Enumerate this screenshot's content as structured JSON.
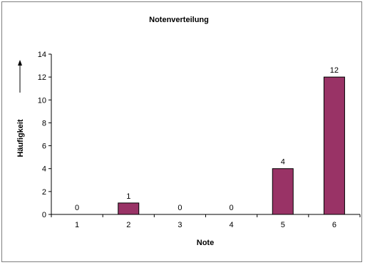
{
  "chart_data": {
    "type": "bar",
    "title": "Notenverteilung",
    "xlabel": "Note",
    "ylabel": "Häufigkeit",
    "categories": [
      "1",
      "2",
      "3",
      "4",
      "5",
      "6"
    ],
    "values": [
      0,
      1,
      0,
      0,
      4,
      12
    ],
    "data_labels": [
      "0",
      "1",
      "0",
      "0",
      "4",
      "12"
    ],
    "ylim": [
      0,
      14
    ],
    "yticks": [
      "0",
      "2",
      "4",
      "6",
      "8",
      "10",
      "12",
      "14"
    ],
    "grid": false,
    "legend": "none",
    "bar_color": "#993366"
  }
}
